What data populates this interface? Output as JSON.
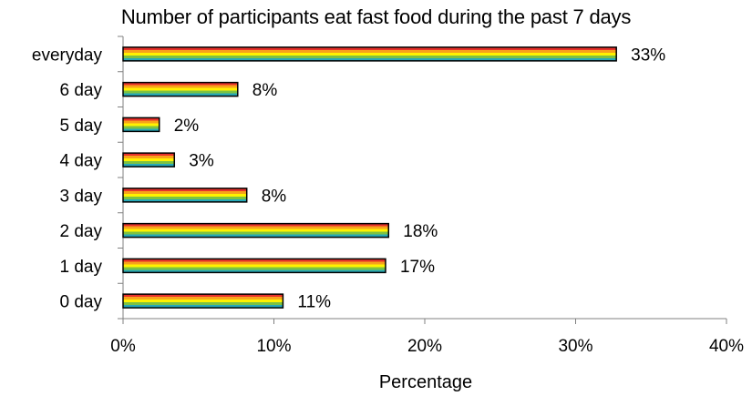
{
  "chart_data": {
    "type": "bar",
    "orientation": "horizontal",
    "title": "Number of participants eat fast food during the past 7 days",
    "xlabel": "Percentage",
    "ylabel": "",
    "categories": [
      "everyday",
      "6 day",
      "5 day",
      "4 day",
      "3 day",
      "2 day",
      "1 day",
      "0 day"
    ],
    "values": [
      32.7,
      7.6,
      2.4,
      3.4,
      8.2,
      17.6,
      17.4,
      10.6
    ],
    "value_labels": [
      "33%",
      "8%",
      "2%",
      "3%",
      "8%",
      "18%",
      "17%",
      "11%"
    ],
    "xlim": [
      0,
      40
    ],
    "xticks": [
      0,
      10,
      20,
      30,
      40
    ],
    "xtick_labels": [
      "0%",
      "10%",
      "20%",
      "30%",
      "40%"
    ],
    "grid": false,
    "bar_fill": [
      "#e8322b",
      "#f7a21b",
      "#fff200",
      "#7dc242",
      "#27a9b8"
    ]
  }
}
